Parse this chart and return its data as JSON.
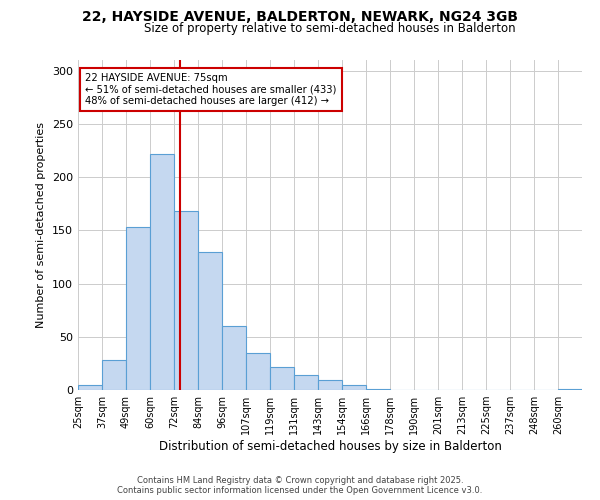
{
  "title": "22, HAYSIDE AVENUE, BALDERTON, NEWARK, NG24 3GB",
  "subtitle": "Size of property relative to semi-detached houses in Balderton",
  "xlabel": "Distribution of semi-detached houses by size in Balderton",
  "ylabel": "Number of semi-detached properties",
  "bin_labels": [
    "25sqm",
    "37sqm",
    "49sqm",
    "60sqm",
    "72sqm",
    "84sqm",
    "96sqm",
    "107sqm",
    "119sqm",
    "131sqm",
    "143sqm",
    "154sqm",
    "166sqm",
    "178sqm",
    "190sqm",
    "201sqm",
    "213sqm",
    "225sqm",
    "237sqm",
    "248sqm",
    "260sqm"
  ],
  "bar_values": [
    5,
    28,
    153,
    222,
    168,
    130,
    60,
    35,
    22,
    14,
    9,
    5,
    1,
    0,
    0,
    0,
    0,
    0,
    0,
    0,
    1
  ],
  "bar_color": "#c5d8f0",
  "bar_edge_color": "#5a9fd4",
  "vline_x": 5,
  "vline_color": "#cc0000",
  "annotation_text": "22 HAYSIDE AVENUE: 75sqm\n← 51% of semi-detached houses are smaller (433)\n48% of semi-detached houses are larger (412) →",
  "annotation_box_edge": "#cc0000",
  "ylim": [
    0,
    310
  ],
  "yticks": [
    0,
    50,
    100,
    150,
    200,
    250,
    300
  ],
  "footer1": "Contains HM Land Registry data © Crown copyright and database right 2025.",
  "footer2": "Contains public sector information licensed under the Open Government Licence v3.0."
}
